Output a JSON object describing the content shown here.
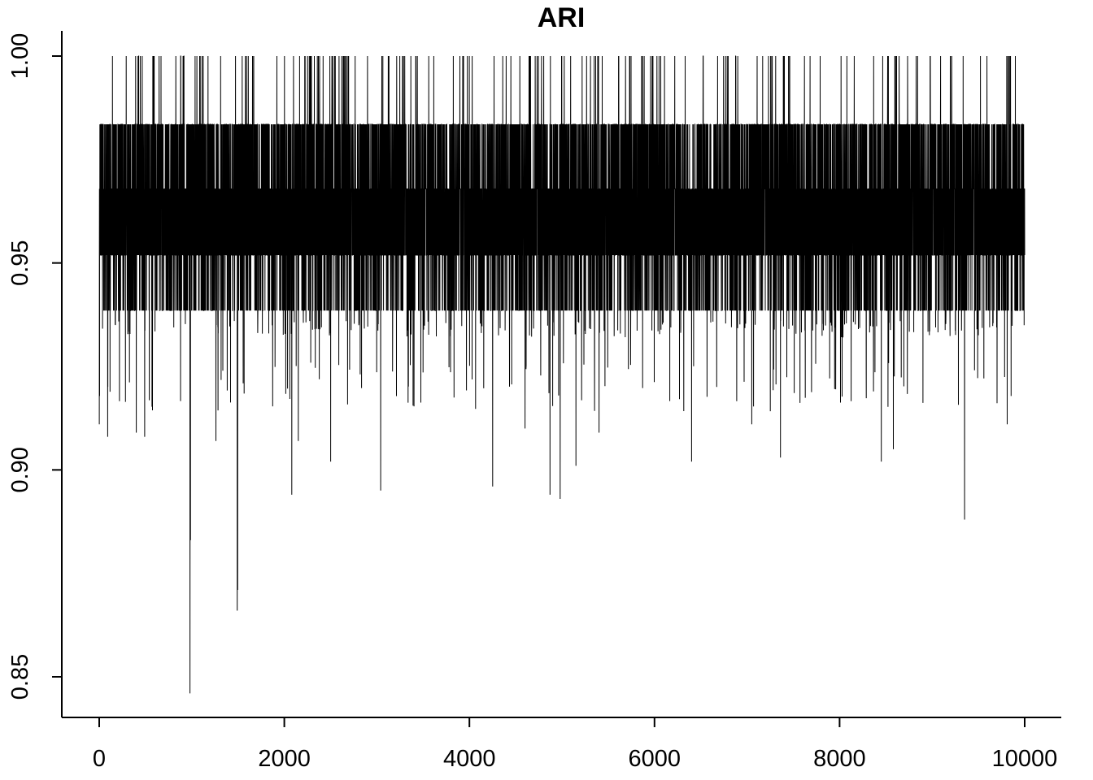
{
  "chart_data": {
    "type": "line",
    "title": "ARI",
    "xlabel": "",
    "ylabel": "",
    "xlim": [
      0,
      10000
    ],
    "ylim": [
      0.85,
      1.0
    ],
    "x_ticks": [
      0,
      2000,
      4000,
      6000,
      8000,
      10000
    ],
    "y_ticks": [
      0.85,
      0.9,
      0.95,
      1.0
    ],
    "x_tick_labels": [
      "0",
      "2000",
      "4000",
      "6000",
      "8000",
      "10000"
    ],
    "y_tick_labels": [
      "0.85",
      "0.90",
      "0.95",
      "1.00"
    ],
    "grid": false,
    "legend": "none",
    "series_color": "#000000",
    "n_iterations": 10000,
    "value_levels": [
      0.9385,
      0.9519,
      0.9679,
      0.9835,
      1.0
    ],
    "typical_band": [
      0.9385,
      0.9835
    ],
    "notable_minima": [
      {
        "x": 980,
        "y": 0.846
      },
      {
        "x": 985,
        "y": 0.883
      },
      {
        "x": 1490,
        "y": 0.866
      },
      {
        "x": 1495,
        "y": 0.871
      },
      {
        "x": 9350,
        "y": 0.888
      },
      {
        "x": 4980,
        "y": 0.893
      },
      {
        "x": 2080,
        "y": 0.894
      },
      {
        "x": 4870,
        "y": 0.894
      },
      {
        "x": 3040,
        "y": 0.895
      },
      {
        "x": 4250,
        "y": 0.896
      },
      {
        "x": 5150,
        "y": 0.901
      },
      {
        "x": 6400,
        "y": 0.902
      },
      {
        "x": 8450,
        "y": 0.902
      },
      {
        "x": 2500,
        "y": 0.902
      },
      {
        "x": 7360,
        "y": 0.903
      },
      {
        "x": 8580,
        "y": 0.905
      },
      {
        "x": 2150,
        "y": 0.907
      },
      {
        "x": 1260,
        "y": 0.907
      },
      {
        "x": 90,
        "y": 0.908
      },
      {
        "x": 490,
        "y": 0.908
      },
      {
        "x": 5400,
        "y": 0.909
      },
      {
        "x": 400,
        "y": 0.909
      },
      {
        "x": 0,
        "y": 0.911
      },
      {
        "x": 9810,
        "y": 0.911
      },
      {
        "x": 7050,
        "y": 0.911
      },
      {
        "x": 4600,
        "y": 0.91
      }
    ]
  }
}
